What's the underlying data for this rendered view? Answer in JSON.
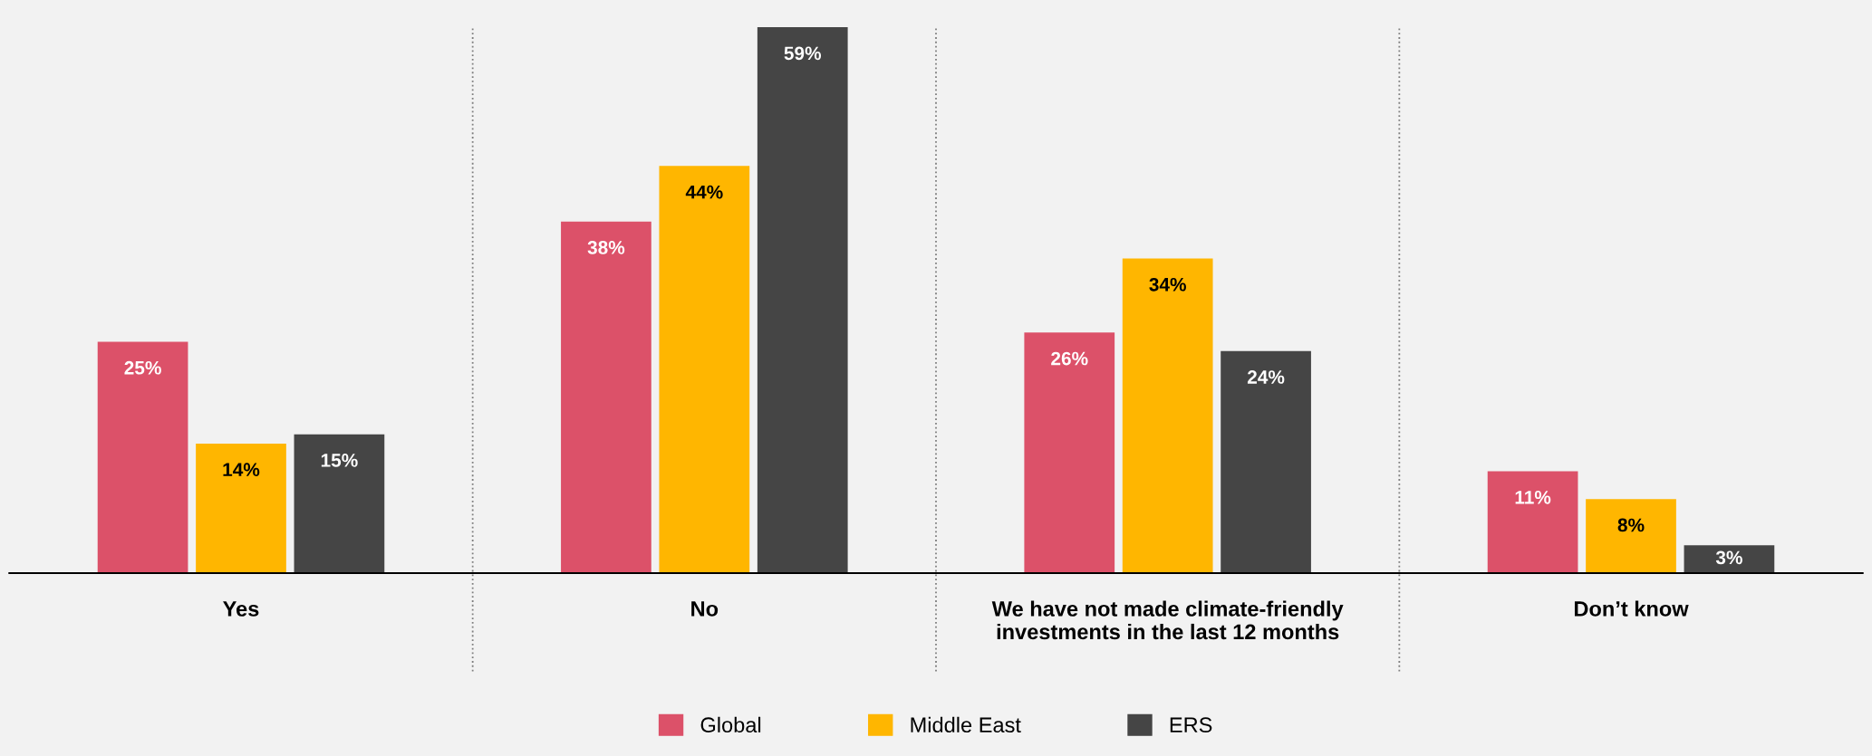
{
  "chart_data": {
    "type": "bar",
    "categories": [
      "Yes",
      "No",
      "We have not made climate-friendly\ninvestments in the last 12 months",
      "Don’t know"
    ],
    "series": [
      {
        "name": "Global",
        "color": "#dc5169",
        "values": [
          25,
          38,
          26,
          11
        ],
        "value_labels": [
          "25%",
          "38%",
          "26%",
          "11%"
        ]
      },
      {
        "name": "Middle East",
        "color": "#ffb600",
        "values": [
          14,
          44,
          34,
          8
        ],
        "value_labels": [
          "14%",
          "44%",
          "34%",
          "8%"
        ]
      },
      {
        "name": "ERS",
        "color": "#454545",
        "values": [
          15,
          59,
          24,
          3
        ],
        "value_labels": [
          "15%",
          "59%",
          "24%",
          "3%"
        ]
      }
    ],
    "legend": "bottom",
    "grid": false
  }
}
